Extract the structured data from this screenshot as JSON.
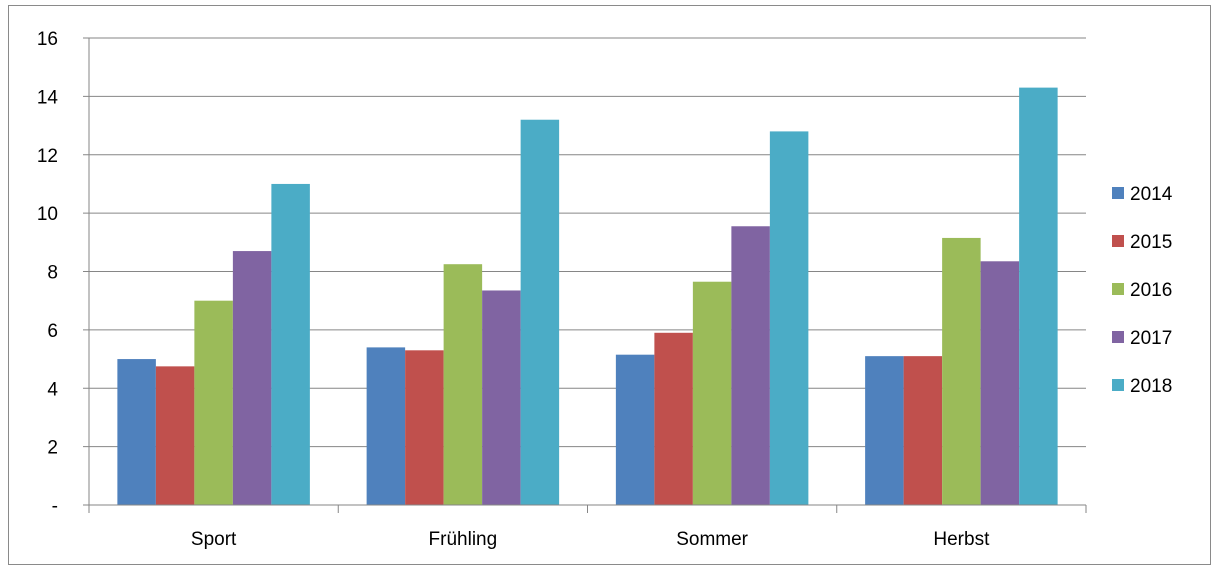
{
  "chart_data": {
    "type": "bar",
    "categories": [
      "Sport",
      "Frühling",
      "Sommer",
      "Herbst"
    ],
    "series": [
      {
        "name": "2014",
        "color": "#4f81bd",
        "values": [
          5.0,
          5.4,
          5.15,
          5.1
        ]
      },
      {
        "name": "2015",
        "color": "#c0504d",
        "values": [
          4.75,
          5.3,
          5.9,
          5.1
        ]
      },
      {
        "name": "2016",
        "color": "#9bbb59",
        "values": [
          7.0,
          8.25,
          7.65,
          9.15
        ]
      },
      {
        "name": "2017",
        "color": "#8064a2",
        "values": [
          8.7,
          7.35,
          9.55,
          8.35
        ]
      },
      {
        "name": "2018",
        "color": "#4bacc6",
        "values": [
          11.0,
          13.2,
          12.8,
          14.3
        ]
      }
    ],
    "ylim": [
      0,
      16
    ],
    "yticks": [
      "-",
      "2",
      "4",
      "6",
      "8",
      "10",
      "12",
      "14",
      "16"
    ],
    "grid": true,
    "legend_position": "right"
  }
}
